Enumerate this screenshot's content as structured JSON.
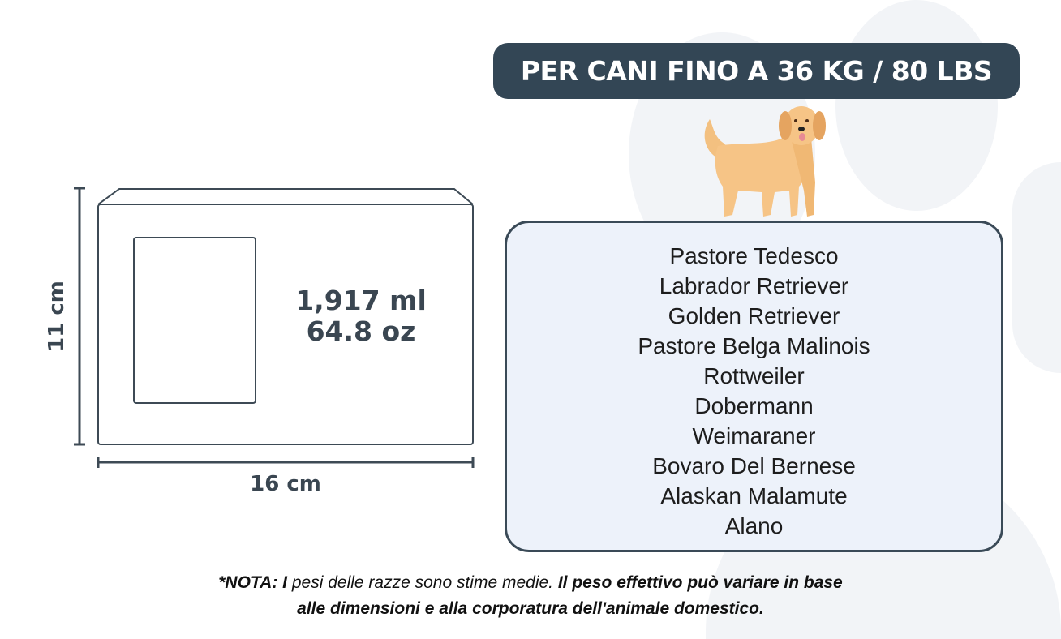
{
  "banner": {
    "text": "PER CANI FINO A 36 KG / 80 LBS",
    "color": "#334655"
  },
  "package": {
    "volume_ml": "1,917 ml",
    "volume_oz": "64.8 oz",
    "height": "11 cm",
    "width": "16 cm"
  },
  "breeds": [
    "Pastore Tedesco",
    "Labrador Retriever",
    "Golden Retriever",
    "Pastore Belga Malinois",
    "Rottweiler",
    "Dobermann",
    "Weimaraner",
    "Bovaro Del Bernese",
    "Alaskan Malamute",
    "Alano"
  ],
  "note": {
    "prefix": "*NOTA: I",
    "regular": " pesi delle razze sono stime medie.",
    "bold_line1": " Il peso effettivo può variare in base",
    "bold_line2": "alle dimensioni e alla corporatura dell'animale domestico."
  },
  "icons": {
    "dog": "golden-retriever-illustration"
  }
}
